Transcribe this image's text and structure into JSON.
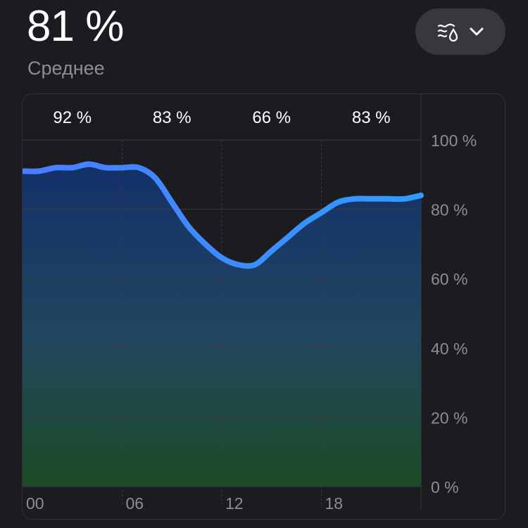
{
  "header": {
    "value": "81 %",
    "caption": "Среднее"
  },
  "metric_selector": {
    "icon": "humidity-icon",
    "chevron": "chevron-down-icon"
  },
  "colors": {
    "background": "#1c1b20",
    "line_start": "#4a7dff",
    "line_end": "#2f9bff",
    "fill_top": "#13306a",
    "fill_bottom": "#1c4b23",
    "grid": "#3a3a40",
    "axis_text": "#8e8d93"
  },
  "chart_data": {
    "type": "area",
    "x_unit": "hour",
    "x": [
      0,
      1,
      2,
      3,
      4,
      5,
      6,
      7,
      8,
      9,
      10,
      11,
      12,
      13,
      14,
      15,
      16,
      17,
      18,
      19,
      20,
      21,
      22,
      23,
      24
    ],
    "values": [
      91,
      91,
      92,
      92,
      93,
      92,
      92,
      92,
      89,
      82,
      75,
      70,
      66,
      64,
      64,
      68,
      72,
      76,
      79,
      82,
      83,
      83,
      83,
      83,
      84
    ],
    "xlim": [
      0,
      24
    ],
    "ylim": [
      0,
      100
    ],
    "x_ticks": [
      "00",
      "06",
      "12",
      "18"
    ],
    "y_ticks": [
      "0 %",
      "20 %",
      "40 %",
      "60 %",
      "80 %",
      "100 %"
    ],
    "period_labels": [
      "92 %",
      "83 %",
      "66 %",
      "83 %"
    ],
    "grid": true
  }
}
